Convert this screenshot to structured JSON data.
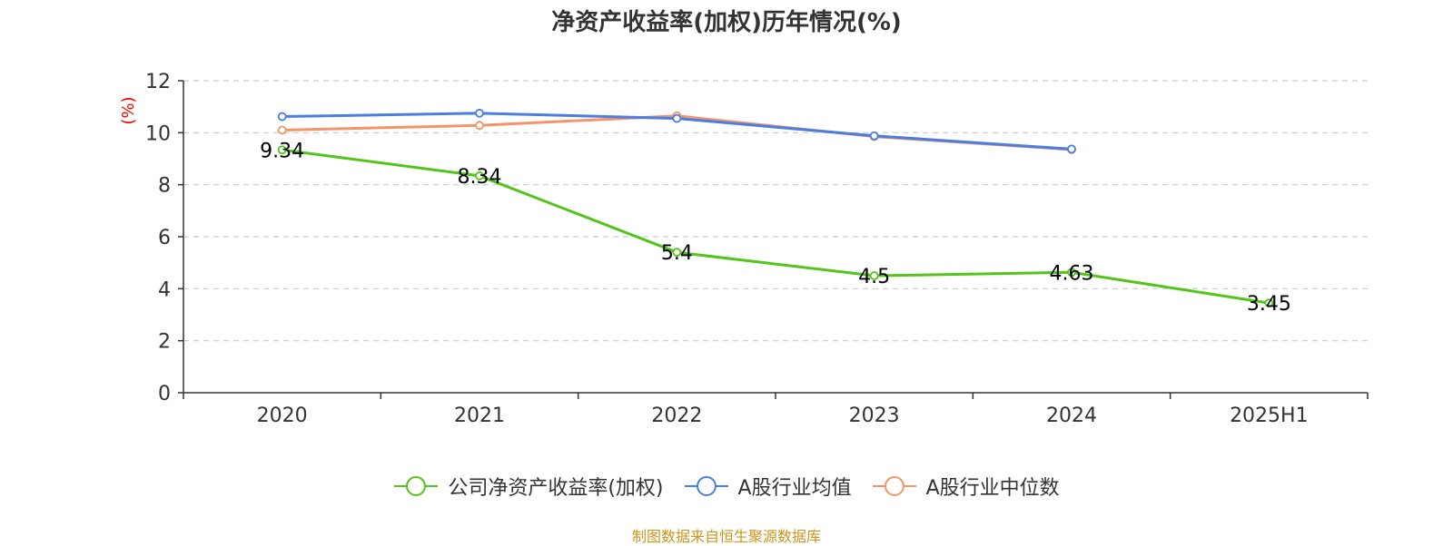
{
  "chart_data": {
    "type": "line",
    "title": "净资产收益率(加权)历年情况(%)",
    "ylabel": "(%)",
    "ylabel_color": "#ff0000",
    "categories": [
      "2020",
      "2021",
      "2022",
      "2023",
      "2024",
      "2025H1"
    ],
    "ylim": [
      0,
      12
    ],
    "yticks": [
      0,
      2,
      4,
      6,
      8,
      10,
      12
    ],
    "grid": true,
    "legend_position": "bottom",
    "series": [
      {
        "name": "公司净资产收益率(加权)",
        "color": "#52c41a",
        "values": [
          9.34,
          8.34,
          5.4,
          4.5,
          4.63,
          3.45
        ],
        "show_labels": true
      },
      {
        "name": "A股行业均值",
        "color": "#4a7ee0",
        "values": [
          10.62,
          10.75,
          10.55,
          9.88,
          9.37,
          null
        ],
        "show_labels": false
      },
      {
        "name": "A股行业中位数",
        "color": "#f4946a",
        "values": [
          10.1,
          10.28,
          10.65,
          9.85,
          9.35,
          null
        ],
        "show_labels": false
      }
    ],
    "data_labels": [
      "9.34",
      "8.34",
      "5.4",
      "4.5",
      "4.63",
      "3.45"
    ],
    "source_note": "制图数据来自恒生聚源数据库",
    "source_note_color": "#c8961e"
  }
}
